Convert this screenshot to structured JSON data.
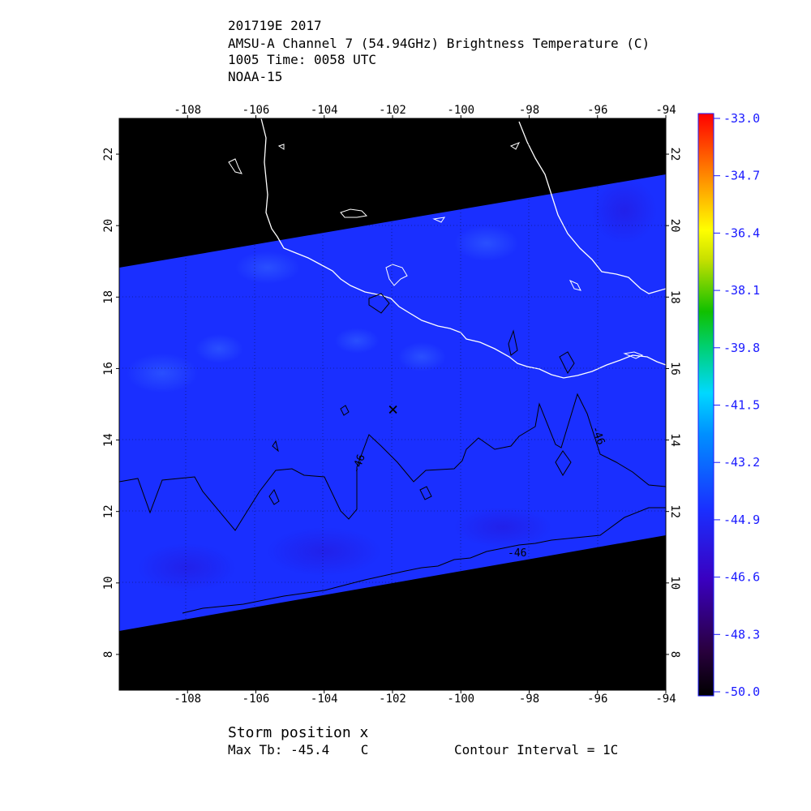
{
  "header": {
    "line1": "201719E 2017",
    "line2": "AMSU-A Channel 7 (54.94GHz) Brightness Temperature (C)",
    "line3": "1005 Time: 0058 UTC",
    "line4": "NOAA-15"
  },
  "map": {
    "lon_range": [
      -110,
      -94
    ],
    "lat_range": [
      7,
      23
    ],
    "lon_ticks": [
      "-108",
      "-106",
      "-104",
      "-102",
      "-100",
      "-98",
      "-96",
      "-94"
    ],
    "lat_ticks": [
      "8",
      "10",
      "12",
      "14",
      "16",
      "18",
      "20",
      "22"
    ],
    "storm_marker": "×",
    "storm_position": {
      "lon": -101.8,
      "lat": 14.8
    },
    "contour_labels": [
      "-46",
      "-46",
      "-46"
    ],
    "colors": {
      "background": "#000000",
      "field": "#1a2fff",
      "coast": "#ffffff",
      "contour": "#000000"
    }
  },
  "colorbar": {
    "labels": [
      "-33.0",
      "-34.7",
      "-36.4",
      "-38.1",
      "-39.8",
      "-41.5",
      "-43.2",
      "-44.9",
      "-46.6",
      "-48.3",
      "-50.0"
    ],
    "label_color": "#1a1aff"
  },
  "footer": {
    "storm_label": "Storm position x",
    "max_tb": "Max Tb: -45.4    C",
    "contour_interval": "Contour Interval = 1C"
  }
}
